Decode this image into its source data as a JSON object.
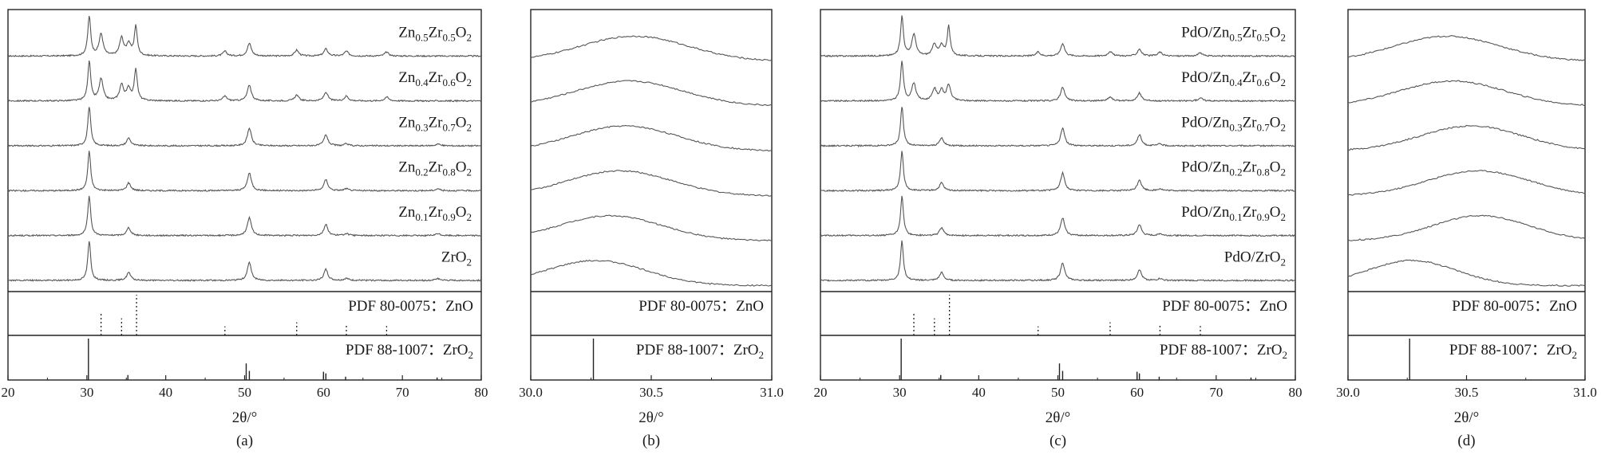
{
  "chart_data": [
    {
      "panel_label": "(a)",
      "type": "line",
      "xlabel": "2θ/°",
      "xlim": [
        20,
        80
      ],
      "x_ticks": [
        20,
        30,
        40,
        50,
        60,
        70,
        80
      ],
      "series": [
        {
          "name": "Zn0.5Zr0.5O2",
          "label": {
            "base": "Zn",
            "s1": "0.5",
            "mid": "Zr",
            "s2": "0.5",
            "end": "O",
            "s3": "2"
          },
          "peaks": [
            [
              30.3,
              1.0
            ],
            [
              31.8,
              0.55
            ],
            [
              34.4,
              0.45
            ],
            [
              35.3,
              0.3
            ],
            [
              36.2,
              0.75
            ],
            [
              47.5,
              0.12
            ],
            [
              50.6,
              0.32
            ],
            [
              56.6,
              0.15
            ],
            [
              60.3,
              0.18
            ],
            [
              62.9,
              0.12
            ],
            [
              68.0,
              0.1
            ]
          ]
        },
        {
          "name": "Zn0.4Zr0.6O2",
          "label": {
            "base": "Zn",
            "s1": "0.4",
            "mid": "Zr",
            "s2": "0.6",
            "end": "O",
            "s3": "2"
          },
          "peaks": [
            [
              30.3,
              1.0
            ],
            [
              31.8,
              0.55
            ],
            [
              34.4,
              0.4
            ],
            [
              35.3,
              0.3
            ],
            [
              36.2,
              0.8
            ],
            [
              47.5,
              0.12
            ],
            [
              50.6,
              0.4
            ],
            [
              56.6,
              0.15
            ],
            [
              60.3,
              0.22
            ],
            [
              62.9,
              0.12
            ],
            [
              68.0,
              0.1
            ]
          ]
        },
        {
          "name": "Zn0.3Zr0.7O2",
          "label": {
            "base": "Zn",
            "s1": "0.3",
            "mid": "Zr",
            "s2": "0.7",
            "end": "O",
            "s3": "2"
          },
          "peaks": [
            [
              30.3,
              1.0
            ],
            [
              35.3,
              0.2
            ],
            [
              50.6,
              0.45
            ],
            [
              60.3,
              0.28
            ],
            [
              62.9,
              0.05
            ],
            [
              74.5,
              0.05
            ]
          ]
        },
        {
          "name": "Zn0.2Zr0.8O2",
          "label": {
            "base": "Zn",
            "s1": "0.2",
            "mid": "Zr",
            "s2": "0.8",
            "end": "O",
            "s3": "2"
          },
          "peaks": [
            [
              30.3,
              1.0
            ],
            [
              35.3,
              0.2
            ],
            [
              50.6,
              0.45
            ],
            [
              60.3,
              0.28
            ],
            [
              62.9,
              0.05
            ],
            [
              74.5,
              0.05
            ]
          ]
        },
        {
          "name": "Zn0.1Zr0.9O2",
          "label": {
            "base": "Zn",
            "s1": "0.1",
            "mid": "Zr",
            "s2": "0.9",
            "end": "O",
            "s3": "2"
          },
          "peaks": [
            [
              30.3,
              1.0
            ],
            [
              35.3,
              0.2
            ],
            [
              50.6,
              0.45
            ],
            [
              60.3,
              0.28
            ],
            [
              62.9,
              0.05
            ],
            [
              74.5,
              0.05
            ]
          ]
        },
        {
          "name": "ZrO2",
          "label": {
            "base": "ZrO",
            "s1": "2",
            "mid": "",
            "s2": "",
            "end": "",
            "s3": ""
          },
          "peaks": [
            [
              30.3,
              1.0
            ],
            [
              35.3,
              0.2
            ],
            [
              50.6,
              0.45
            ],
            [
              60.3,
              0.28
            ],
            [
              62.9,
              0.05
            ],
            [
              74.5,
              0.05
            ]
          ]
        }
      ],
      "references": [
        {
          "label": "PDF 80-0075：ZnO",
          "style": "dotted",
          "lines": [
            [
              31.8,
              0.57
            ],
            [
              34.4,
              0.42
            ],
            [
              36.3,
              1.0
            ],
            [
              47.5,
              0.22
            ],
            [
              56.6,
              0.32
            ],
            [
              62.9,
              0.28
            ],
            [
              68.0,
              0.23
            ]
          ]
        },
        {
          "label": "PDF 88-1007：ZrO",
          "label_sub": "2",
          "style": "solid",
          "lines": [
            [
              30.2,
              1.0
            ],
            [
              35.2,
              0.12
            ],
            [
              50.2,
              0.4
            ],
            [
              50.6,
              0.22
            ],
            [
              60.0,
              0.2
            ],
            [
              60.3,
              0.16
            ],
            [
              62.8,
              0.08
            ],
            [
              74.4,
              0.06
            ]
          ]
        }
      ]
    },
    {
      "panel_label": "(b)",
      "type": "line",
      "xlabel": "2θ/°",
      "xlim": [
        30.0,
        31.0
      ],
      "x_ticks": [
        30.0,
        30.5,
        31.0
      ],
      "x_tick_labels": [
        "30.0",
        "30.5",
        "31.0"
      ],
      "series": [
        {
          "name": "Zn0.5Zr0.5O2",
          "center": 30.43,
          "width": 0.33
        },
        {
          "name": "Zn0.4Zr0.6O2",
          "center": 30.41,
          "width": 0.33
        },
        {
          "name": "Zn0.3Zr0.7O2",
          "center": 30.39,
          "width": 0.32
        },
        {
          "name": "Zn0.2Zr0.8O2",
          "center": 30.37,
          "width": 0.32
        },
        {
          "name": "Zn0.1Zr0.9O2",
          "center": 30.33,
          "width": 0.32
        },
        {
          "name": "ZrO2",
          "center": 30.27,
          "width": 0.31
        }
      ],
      "references": [
        {
          "label": "PDF 80-0075：ZnO",
          "style": "dotted",
          "lines": []
        },
        {
          "label": "PDF 88-1007：ZrO",
          "label_sub": "2",
          "style": "solid",
          "lines": [
            [
              30.26,
              1.0
            ]
          ]
        }
      ]
    },
    {
      "panel_label": "(c)",
      "type": "line",
      "xlabel": "2θ/°",
      "xlim": [
        20,
        80
      ],
      "x_ticks": [
        20,
        30,
        40,
        50,
        60,
        70,
        80
      ],
      "series": [
        {
          "name": "PdO/Zn0.5Zr0.5O2",
          "label": {
            "base": "PdO/Zn",
            "s1": "0.5",
            "mid": "Zr",
            "s2": "0.5",
            "end": "O",
            "s3": "2"
          },
          "peaks": [
            [
              30.3,
              1.0
            ],
            [
              31.8,
              0.55
            ],
            [
              34.4,
              0.3
            ],
            [
              35.3,
              0.25
            ],
            [
              36.2,
              0.75
            ],
            [
              47.5,
              0.1
            ],
            [
              50.6,
              0.32
            ],
            [
              56.6,
              0.12
            ],
            [
              60.3,
              0.18
            ],
            [
              62.9,
              0.1
            ],
            [
              68.0,
              0.08
            ]
          ]
        },
        {
          "name": "PdO/Zn0.4Zr0.6O2",
          "label": {
            "base": "PdO/Zn",
            "s1": "0.4",
            "mid": "Zr",
            "s2": "0.6",
            "end": "O",
            "s3": "2"
          },
          "peaks": [
            [
              30.3,
              1.0
            ],
            [
              31.8,
              0.45
            ],
            [
              34.4,
              0.3
            ],
            [
              35.3,
              0.25
            ],
            [
              36.2,
              0.4
            ],
            [
              50.6,
              0.35
            ],
            [
              56.6,
              0.1
            ],
            [
              60.3,
              0.2
            ],
            [
              68.0,
              0.08
            ]
          ]
        },
        {
          "name": "PdO/Zn0.3Zr0.7O2",
          "label": {
            "base": "PdO/Zn",
            "s1": "0.3",
            "mid": "Zr",
            "s2": "0.7",
            "end": "O",
            "s3": "2"
          },
          "peaks": [
            [
              30.3,
              1.0
            ],
            [
              35.3,
              0.2
            ],
            [
              50.6,
              0.45
            ],
            [
              60.3,
              0.28
            ],
            [
              62.9,
              0.05
            ]
          ]
        },
        {
          "name": "PdO/Zn0.2Zr0.8O2",
          "label": {
            "base": "PdO/Zn",
            "s1": "0.2",
            "mid": "Zr",
            "s2": "0.8",
            "end": "O",
            "s3": "2"
          },
          "peaks": [
            [
              30.3,
              1.0
            ],
            [
              35.3,
              0.2
            ],
            [
              50.6,
              0.45
            ],
            [
              60.3,
              0.28
            ],
            [
              62.9,
              0.05
            ]
          ]
        },
        {
          "name": "PdO/Zn0.1Zr0.9O2",
          "label": {
            "base": "PdO/Zn",
            "s1": "0.1",
            "mid": "Zr",
            "s2": "0.9",
            "end": "O",
            "s3": "2"
          },
          "peaks": [
            [
              30.3,
              1.0
            ],
            [
              35.3,
              0.2
            ],
            [
              50.6,
              0.45
            ],
            [
              60.3,
              0.28
            ],
            [
              62.9,
              0.05
            ]
          ]
        },
        {
          "name": "PdO/ZrO2",
          "label": {
            "base": "PdO/ZrO",
            "s1": "2",
            "mid": "",
            "s2": "",
            "end": "",
            "s3": ""
          },
          "peaks": [
            [
              30.3,
              1.0
            ],
            [
              35.3,
              0.2
            ],
            [
              50.6,
              0.45
            ],
            [
              60.3,
              0.28
            ],
            [
              62.9,
              0.05
            ]
          ]
        }
      ],
      "references": [
        {
          "label": "PDF 80-0075：ZnO",
          "style": "dotted",
          "lines": [
            [
              31.8,
              0.57
            ],
            [
              34.4,
              0.42
            ],
            [
              36.3,
              1.0
            ],
            [
              47.5,
              0.22
            ],
            [
              56.6,
              0.32
            ],
            [
              62.9,
              0.28
            ],
            [
              68.0,
              0.23
            ]
          ]
        },
        {
          "label": "PDF 88-1007：ZrO",
          "label_sub": "2",
          "style": "solid",
          "lines": [
            [
              30.2,
              1.0
            ],
            [
              35.2,
              0.12
            ],
            [
              50.2,
              0.4
            ],
            [
              50.6,
              0.22
            ],
            [
              60.0,
              0.2
            ],
            [
              60.3,
              0.16
            ],
            [
              62.8,
              0.08
            ],
            [
              74.4,
              0.06
            ]
          ]
        }
      ]
    },
    {
      "panel_label": "(d)",
      "type": "line",
      "xlabel": "2θ/°",
      "xlim": [
        30.0,
        31.0
      ],
      "x_ticks": [
        30.0,
        30.5,
        31.0
      ],
      "x_tick_labels": [
        "30.0",
        "30.5",
        "31.0"
      ],
      "series": [
        {
          "name": "PdO/Zn0.5Zr0.5O2",
          "center": 30.42,
          "width": 0.33
        },
        {
          "name": "PdO/Zn0.4Zr0.6O2",
          "center": 30.44,
          "width": 0.33
        },
        {
          "name": "PdO/Zn0.3Zr0.7O2",
          "center": 30.52,
          "width": 0.32
        },
        {
          "name": "PdO/Zn0.2Zr0.8O2",
          "center": 30.55,
          "width": 0.32
        },
        {
          "name": "PdO/Zn0.1Zr0.9O2",
          "center": 30.56,
          "width": 0.3
        },
        {
          "name": "PdO/ZrO2",
          "center": 30.27,
          "width": 0.28
        }
      ],
      "references": [
        {
          "label": "PDF 80-0075：ZnO",
          "style": "dotted",
          "lines": []
        },
        {
          "label": "PDF 88-1007：ZrO",
          "label_sub": "2",
          "style": "solid",
          "lines": [
            [
              30.26,
              1.0
            ]
          ]
        }
      ]
    }
  ]
}
